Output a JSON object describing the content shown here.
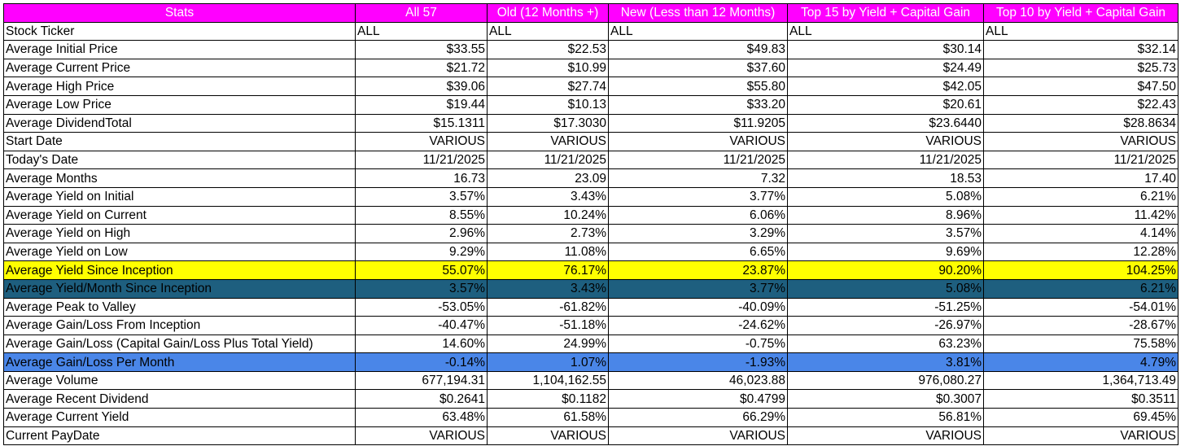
{
  "columns": [
    "Stats",
    "All 57",
    "Old (12 Months +)",
    "New (Less than 12 Months)",
    "Top 15 by Yield + Capital Gain",
    "Top 10 by Yield + Capital Gain"
  ],
  "rows": [
    {
      "label": "Stock Ticker",
      "values": [
        "ALL",
        "ALL",
        "ALL",
        "ALL",
        "ALL"
      ],
      "align": "left",
      "highlight": "none"
    },
    {
      "label": "Average Initial Price",
      "values": [
        "$33.55",
        "$22.53",
        "$49.83",
        "$30.14",
        "$32.14"
      ],
      "align": "right",
      "highlight": "none"
    },
    {
      "label": "Average Current Price",
      "values": [
        "$21.72",
        "$10.99",
        "$37.60",
        "$24.49",
        "$25.73"
      ],
      "align": "right",
      "highlight": "none"
    },
    {
      "label": "Average High Price",
      "values": [
        "$39.06",
        "$27.74",
        "$55.80",
        "$42.05",
        "$47.50"
      ],
      "align": "right",
      "highlight": "none"
    },
    {
      "label": "Average Low Price",
      "values": [
        "$19.44",
        "$10.13",
        "$33.20",
        "$20.61",
        "$22.43"
      ],
      "align": "right",
      "highlight": "none"
    },
    {
      "label": "Average DividendTotal",
      "values": [
        "$15.1311",
        "$17.3030",
        "$11.9205",
        "$23.6440",
        "$28.8634"
      ],
      "align": "right",
      "highlight": "none"
    },
    {
      "label": "Start Date",
      "values": [
        "VARIOUS",
        "VARIOUS",
        "VARIOUS",
        "VARIOUS",
        "VARIOUS"
      ],
      "align": "right",
      "highlight": "none"
    },
    {
      "label": "Today's Date",
      "values": [
        "11/21/2025",
        "11/21/2025",
        "11/21/2025",
        "11/21/2025",
        "11/21/2025"
      ],
      "align": "right",
      "highlight": "none"
    },
    {
      "label": "Average Months",
      "values": [
        "16.73",
        "23.09",
        "7.32",
        "18.53",
        "17.40"
      ],
      "align": "right",
      "highlight": "none"
    },
    {
      "label": "Average Yield on Initial",
      "values": [
        "3.57%",
        "3.43%",
        "3.77%",
        "5.08%",
        "6.21%"
      ],
      "align": "right",
      "highlight": "none"
    },
    {
      "label": "Average Yield on Current",
      "values": [
        "8.55%",
        "10.24%",
        "6.06%",
        "8.96%",
        "11.42%"
      ],
      "align": "right",
      "highlight": "none"
    },
    {
      "label": "Average Yield on High",
      "values": [
        "2.96%",
        "2.73%",
        "3.29%",
        "3.57%",
        "4.14%"
      ],
      "align": "right",
      "highlight": "none"
    },
    {
      "label": "Average Yield on Low",
      "values": [
        "9.29%",
        "11.08%",
        "6.65%",
        "9.69%",
        "12.28%"
      ],
      "align": "right",
      "highlight": "none"
    },
    {
      "label": "Average Yield Since Inception",
      "values": [
        "55.07%",
        "76.17%",
        "23.87%",
        "90.20%",
        "104.25%"
      ],
      "align": "right",
      "highlight": "yellow"
    },
    {
      "label": "Average Yield/Month Since Inception",
      "values": [
        "3.57%",
        "3.43%",
        "3.77%",
        "5.08%",
        "6.21%"
      ],
      "align": "right",
      "highlight": "teal"
    },
    {
      "label": "Average Peak to Valley",
      "values": [
        "-53.05%",
        "-61.82%",
        "-40.09%",
        "-51.25%",
        "-54.01%"
      ],
      "align": "right",
      "highlight": "none"
    },
    {
      "label": "Average Gain/Loss From Inception",
      "values": [
        "-40.47%",
        "-51.18%",
        "-24.62%",
        "-26.97%",
        "-28.67%"
      ],
      "align": "right",
      "highlight": "none"
    },
    {
      "label": "Average Gain/Loss (Capital Gain/Loss Plus Total Yield)",
      "values": [
        "14.60%",
        "24.99%",
        "-0.75%",
        "63.23%",
        "75.58%"
      ],
      "align": "right",
      "highlight": "none"
    },
    {
      "label": "Average Gain/Loss Per Month",
      "values": [
        "-0.14%",
        "1.07%",
        "-1.93%",
        "3.81%",
        "4.79%"
      ],
      "align": "right",
      "highlight": "blue"
    },
    {
      "label": "Average Volume",
      "values": [
        "677,194.31",
        "1,104,162.55",
        "46,023.88",
        "976,080.27",
        "1,364,713.49"
      ],
      "align": "right",
      "highlight": "none"
    },
    {
      "label": "Average Recent Dividend",
      "values": [
        "$0.2641",
        "$0.1182",
        "$0.4799",
        "$0.3007",
        "$0.3511"
      ],
      "align": "right",
      "highlight": "none"
    },
    {
      "label": "Average Current Yield",
      "values": [
        "63.48%",
        "61.58%",
        "66.29%",
        "56.81%",
        "69.45%"
      ],
      "align": "right",
      "highlight": "none"
    },
    {
      "label": "Current PayDate",
      "values": [
        "VARIOUS",
        "VARIOUS",
        "VARIOUS",
        "VARIOUS",
        "VARIOUS"
      ],
      "align": "right",
      "highlight": "none"
    }
  ],
  "colors": {
    "header_bg": "#ff00ff",
    "header_text": "#ffffff",
    "highlight_yellow": "#ffff00",
    "highlight_teal": "#1e5f7f",
    "highlight_blue": "#4a86e8",
    "border": "#000000"
  }
}
